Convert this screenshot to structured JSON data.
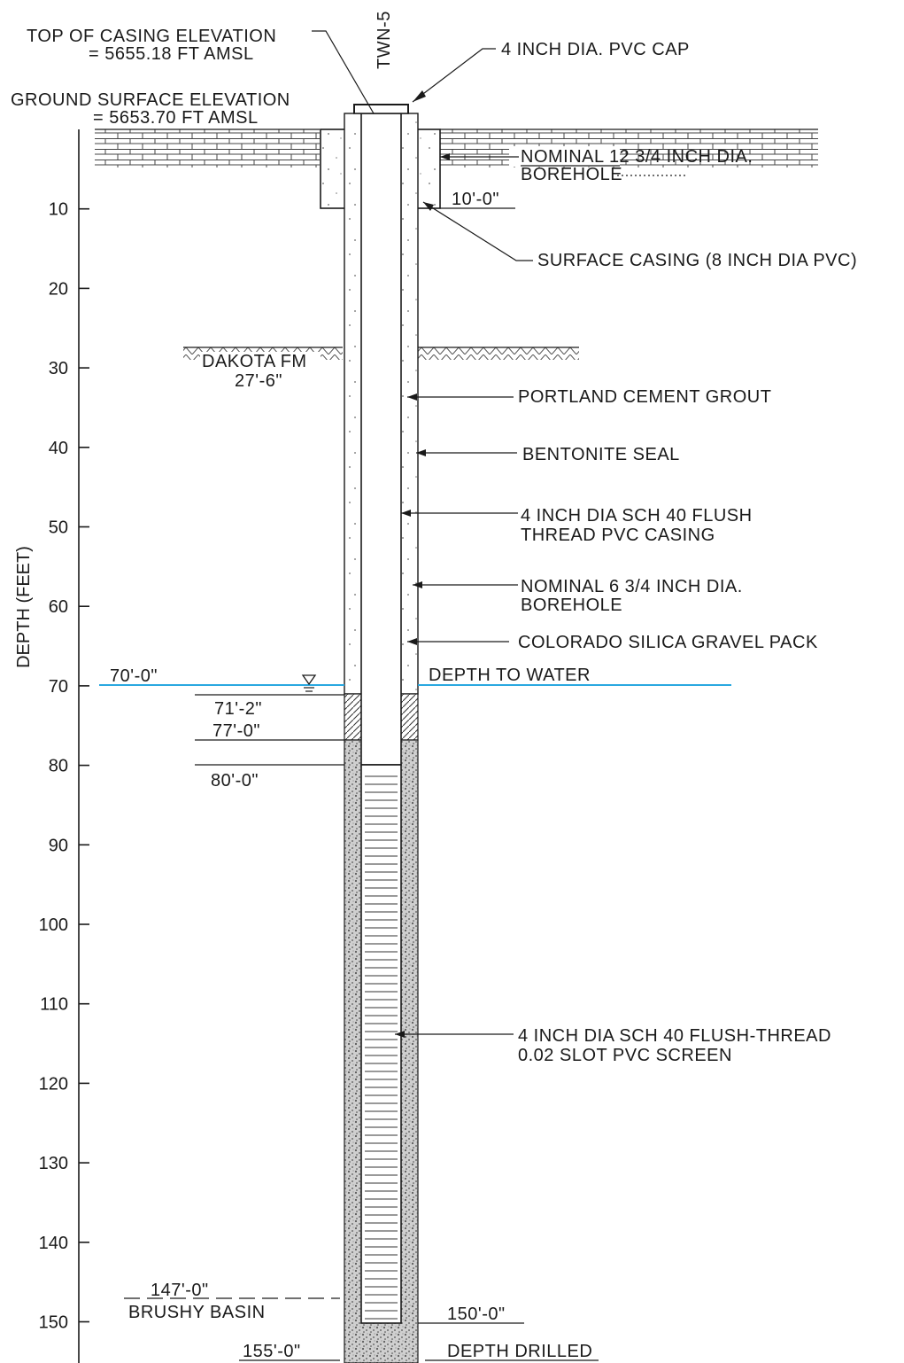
{
  "well_id": "TWN-5",
  "axis": {
    "label": "DEPTH (FEET)",
    "ticks": [
      10,
      20,
      30,
      40,
      50,
      60,
      70,
      80,
      90,
      100,
      110,
      120,
      130,
      140,
      150
    ]
  },
  "top_of_casing": {
    "line1": "TOP OF CASING ELEVATION",
    "line2": "= 5655.18 FT AMSL"
  },
  "ground_surface": {
    "line1": "GROUND SURFACE ELEVATION",
    "line2": "= 5653.70 FT AMSL"
  },
  "callouts": {
    "cap": "4 INCH DIA. PVC CAP",
    "surface_borehole_1": "NOMINAL 12 3/4 INCH DIA.",
    "surface_borehole_2": "BOREHOLE",
    "surface_casing_depth": "10'-0\"",
    "surface_casing": "SURFACE CASING (8 INCH DIA PVC)",
    "grout": "PORTLAND CEMENT GROUT",
    "bentonite": "BENTONITE SEAL",
    "casing_1": "4 INCH DIA SCH 40 FLUSH",
    "casing_2": "THREAD PVC CASING",
    "borehole_1": "NOMINAL 6 3/4 INCH DIA.",
    "borehole_2": "BOREHOLE",
    "gravel_pack": "COLORADO SILICA GRAVEL PACK",
    "depth_to_water": "DEPTH TO WATER",
    "screen_1": "4 INCH DIA SCH 40 FLUSH-THREAD",
    "screen_2": "0.02 SLOT PVC SCREEN",
    "depth_drilled": "DEPTH DRILLED"
  },
  "formations": {
    "dakota_name": "DAKOTA FM",
    "dakota_depth": "27'-6\"",
    "brushy_depth": "147'-0\"",
    "brushy_name": "BRUSHY BASIN"
  },
  "depth_marks": {
    "water": "70'-0\"",
    "seal_top": "71'-2\"",
    "seal_bottom": "77'-0\"",
    "screen_top": "80'-0\"",
    "screen_bottom": "150'-0\"",
    "total": "155'-0\""
  },
  "colors": {
    "water_line": "#29a8e0",
    "ink": "#1a1a1a"
  }
}
